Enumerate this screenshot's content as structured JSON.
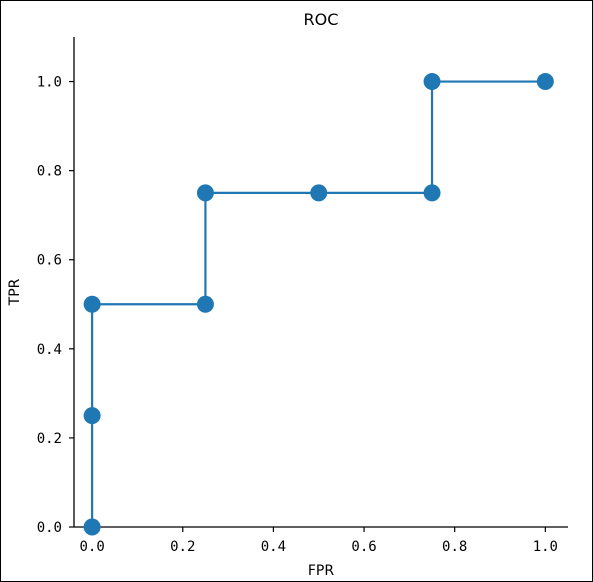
{
  "chart_data": {
    "type": "line",
    "title": "ROC",
    "xlabel": "FPR",
    "ylabel": "TPR",
    "xlim": [
      -0.04,
      1.05
    ],
    "ylim": [
      0.0,
      1.1
    ],
    "xticks": [
      0.0,
      0.2,
      0.4,
      0.6,
      0.8,
      1.0
    ],
    "yticks": [
      0.0,
      0.2,
      0.4,
      0.6,
      0.8,
      1.0
    ],
    "xtick_labels": [
      "0.0",
      "0.2",
      "0.4",
      "0.6",
      "0.8",
      "1.0"
    ],
    "ytick_labels": [
      "0.0",
      "0.2",
      "0.4",
      "0.6",
      "0.8",
      "1.0"
    ],
    "grid": false,
    "color": "#1f77b4",
    "series": [
      {
        "x": [
          0.0,
          0.0,
          0.0,
          0.25,
          0.25,
          0.5,
          0.75,
          0.75,
          1.0
        ],
        "y": [
          0.0,
          0.25,
          0.5,
          0.5,
          0.75,
          0.75,
          0.75,
          1.0,
          1.0
        ]
      }
    ]
  }
}
